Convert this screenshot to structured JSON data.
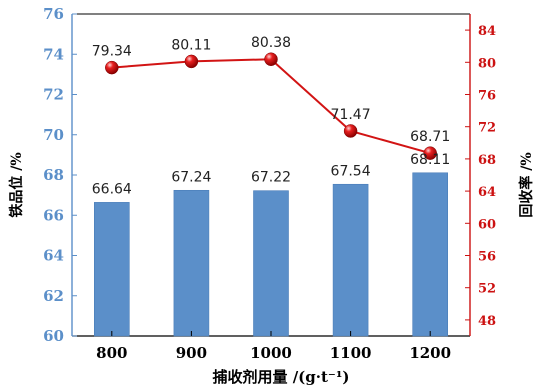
{
  "chart_data": {
    "type": "bar+line",
    "categories": [
      "800",
      "900",
      "1000",
      "1100",
      "1200"
    ],
    "xlabel": "捕收剂用量 /(g·t⁻¹)",
    "series": [
      {
        "name": "铁品位 /%",
        "chart_type": "bar",
        "axis": "left",
        "values": [
          66.64,
          67.24,
          67.22,
          67.54,
          68.11
        ]
      },
      {
        "name": "回收率 /%",
        "chart_type": "line",
        "axis": "right",
        "values": [
          79.34,
          80.11,
          80.38,
          71.47,
          68.71
        ]
      }
    ],
    "y_left": {
      "label": "铁品位 /%",
      "lim": [
        60,
        76
      ],
      "ticks": [
        "60",
        "62",
        "64",
        "66",
        "68",
        "70",
        "72",
        "74",
        "76"
      ]
    },
    "y_right": {
      "label": "回收率 /%",
      "lim": [
        46,
        86
      ],
      "ticks": [
        "48",
        "52",
        "56",
        "60",
        "64",
        "68",
        "72",
        "76",
        "80",
        "84"
      ]
    },
    "bar_labels": [
      "66.64",
      "67.24",
      "67.22",
      "67.54",
      "68.11"
    ],
    "point_labels": [
      "79.34",
      "80.11",
      "80.38",
      "71.47",
      "68.71"
    ],
    "grid": false,
    "colors": {
      "bar": "#5b8fc9",
      "bar_edge": "#4a7db8",
      "line": "#d21414",
      "left_axis": "#5b8fc9",
      "right_axis": "#cc1111",
      "frame": "#000000"
    }
  }
}
